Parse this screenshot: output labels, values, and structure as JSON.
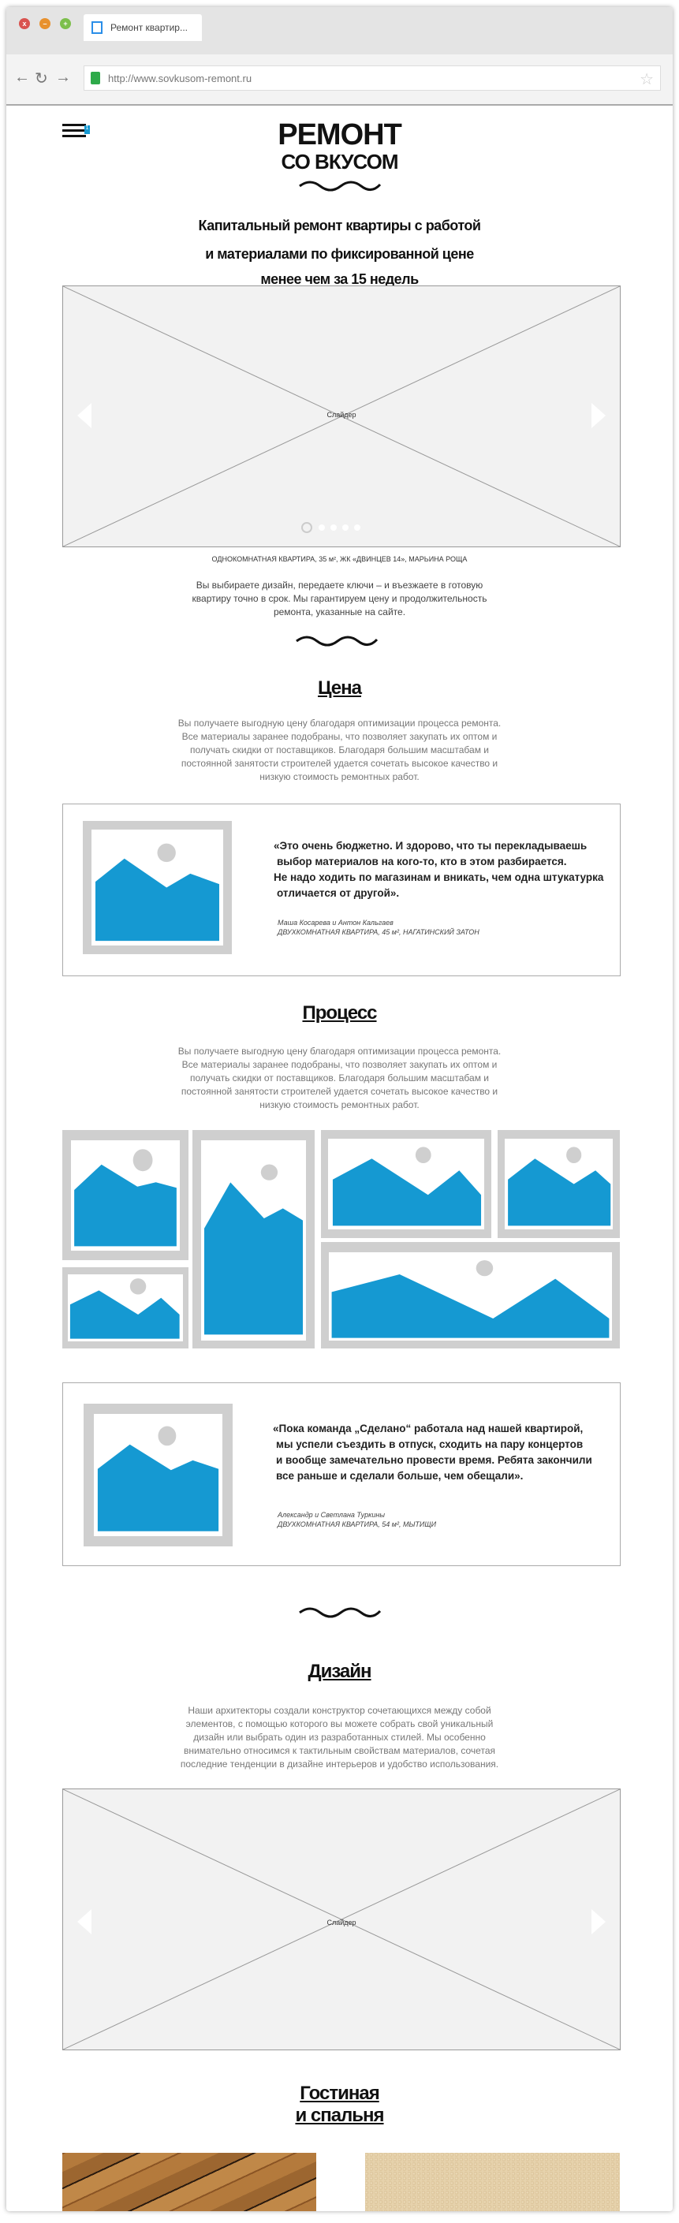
{
  "browser": {
    "tab_title": "Ремонт квартир...",
    "url": "http://www.sovkusom-remont.ru",
    "close_label": "x",
    "minimize_label": "–",
    "maximize_label": "+"
  },
  "header": {
    "menu_badge": "1",
    "title_line1": "РЕМОНТ",
    "title_line2": "СО ВКУСОМ",
    "subtitle": [
      "Капитальный ремонт квартиры с работой",
      "и материалами по фиксированной цене",
      "менее чем за 15 недель"
    ]
  },
  "hero_slider": {
    "label": "Слайдер",
    "caption": "ОДНОКОМНАТНАЯ КВАРТИРА, 35 м², ЖК «ДВИНЦЕВ 14», МАРЬИНА РОЩА",
    "dots": 5,
    "active_dot": 1
  },
  "intro": [
    "Вы выбираете дизайн, передаете ключи – и въезжаете в готовую",
    "квартиру точно в срок. Мы гарантируем цену и продолжительность",
    "ремонта, указанные на сайте."
  ],
  "price": {
    "title": "Цена",
    "text": [
      "Вы получаете выгодную цену благодаря оптимизации процесса ремонта.",
      "Все материалы заранее подобраны, что позволяет закупать их оптом и",
      "получать скидки от поставщиков. Благодаря большим масштабам и",
      "постоянной занятости строителей удается сочетать высокое качество и",
      "низкую стоимость ремонтных работ."
    ]
  },
  "testimonial1": {
    "quote": [
      "«Это очень бюджетно. И здорово, что ты перекладываешь",
      "выбор материалов на кого-то, кто в этом разбирается.",
      "Не надо ходить по магазинам и вникать, чем одна штукатурка",
      "отличается от другой»."
    ],
    "author": "Маша Косарева и Антон Кальгаев",
    "apartment": "ДВУХКОМНАТНАЯ КВАРТИРА, 45 м², НАГАТИНСКИЙ ЗАТОН"
  },
  "process": {
    "title": "Процесс",
    "text": [
      "Вы получаете выгодную цену благодаря оптимизации процесса ремонта.",
      "Все материалы заранее подобраны, что позволяет закупать их оптом и",
      "получать скидки от поставщиков. Благодаря большим масштабам и",
      "постоянной занятости строителей удается сочетать высокое качество и",
      "низкую стоимость ремонтных работ."
    ]
  },
  "testimonial2": {
    "quote": [
      "«Пока команда „Сделано“ работала над нашей квартирой,",
      "мы успели съездить в отпуск, сходить на пару концертов",
      "и вообще замечательно провести время. Ребята закончили",
      "все раньше и сделали больше, чем обещали»."
    ],
    "author": "Александр и Светлана Туркины",
    "apartment": "ДВУХКОМНАТНАЯ КВАРТИРА, 54 м², МЫТИЩИ"
  },
  "design": {
    "title": "Дизайн",
    "text": [
      "Наши архитекторы создали конструктор сочетающихся между собой",
      "элементов, с помощью которого вы можете собрать свой уникальный",
      "дизайн или выбрать один из разработанных стилей. Мы особенно",
      "внимательно относимся к тактильным свойствам материалов, сочетая",
      "последние тенденции в дизайне интерьеров и удобство использования."
    ],
    "slider_label": "Слайдер"
  },
  "rooms": {
    "title_line1": "Гостиная",
    "title_line2": "и спальня"
  },
  "colors": {
    "accent": "#1599d2",
    "placeholder_gray": "#cfcfcf",
    "slider_bg": "#f2f2f2",
    "lock": "#2eaa4a"
  }
}
